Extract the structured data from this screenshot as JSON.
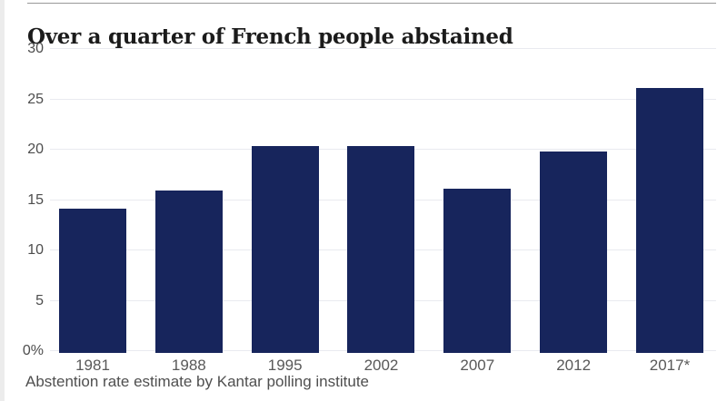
{
  "chart_data": {
    "type": "bar",
    "title": "Over a quarter of French people abstained",
    "caption": "Abstention rate estimate by Kantar polling institute",
    "categories": [
      "1981",
      "1988",
      "1995",
      "2002",
      "2007",
      "2012",
      "2017*"
    ],
    "values": [
      14.1,
      15.9,
      20.3,
      20.3,
      16.0,
      19.7,
      26.0
    ],
    "unit": "%",
    "ylim": [
      0,
      30
    ],
    "yticks": [
      {
        "value": 0,
        "label": "0%"
      },
      {
        "value": 5,
        "label": "5"
      },
      {
        "value": 10,
        "label": "10"
      },
      {
        "value": 15,
        "label": "15"
      },
      {
        "value": 20,
        "label": "20"
      },
      {
        "value": 25,
        "label": "25"
      },
      {
        "value": 30,
        "label": "30"
      }
    ],
    "grid": true,
    "legend": false,
    "colors": {
      "bar": "#17255c",
      "gridline": "#e9eaf0",
      "axis_label": "#4d4d4d",
      "title": "#1b1b1b",
      "caption": "#4f4f4f"
    }
  }
}
